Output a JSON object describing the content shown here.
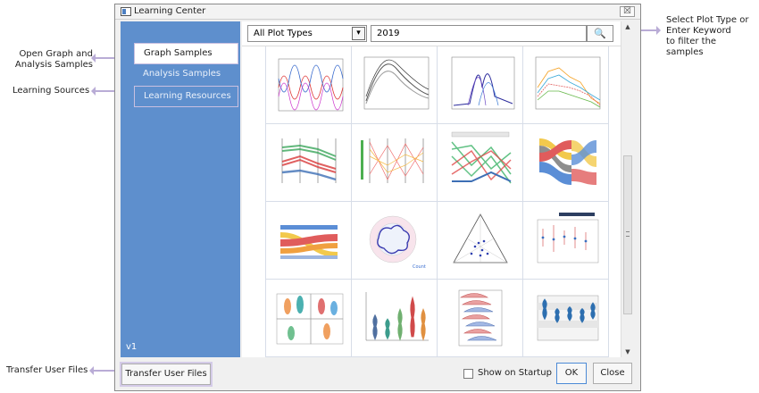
{
  "annotations": {
    "open_samples": "Open Graph and\nAnalysis Samples",
    "learning_sources": "Learning Sources",
    "transfer_user_files": "Transfer User Files",
    "filter_help": "Select Plot Type or\nEnter Keyword\nto filter the samples"
  },
  "window": {
    "title": "Learning Center",
    "close_symbol": "☒"
  },
  "sidebar": {
    "items": [
      {
        "label": "Graph Samples",
        "state": "selected"
      },
      {
        "label": "Analysis Samples",
        "state": "normal"
      },
      {
        "label": "Learning Resources",
        "state": "normal"
      }
    ],
    "version": "v1"
  },
  "filter": {
    "plot_type": "All Plot Types",
    "dropdown_symbol": "▾",
    "keyword": "2019",
    "search_symbol": "🔍"
  },
  "thumbnails": [
    "sine-waves",
    "spectra-curves",
    "peak-fit",
    "multi-line",
    "parallel-lines-1",
    "parallel-lines-2",
    "parallel-lines-3",
    "alluvial-1",
    "alluvial-2",
    "polar-contour",
    "ternary",
    "dot-interval",
    "violin-grid",
    "violin-groups",
    "ridgeline",
    "violin-horizontal"
  ],
  "scrollbar": {
    "up": "▲",
    "down": "▼"
  },
  "footer": {
    "transfer_button": "Transfer User Files",
    "show_on_startup_label": "Show on Startup",
    "show_on_startup_checked": false,
    "ok_button": "OK",
    "close_button": "Close"
  },
  "colors": {
    "sidebar": "#5e8fcd",
    "arrow": "#b9acd6",
    "ok_border": "#4c8ad6"
  }
}
